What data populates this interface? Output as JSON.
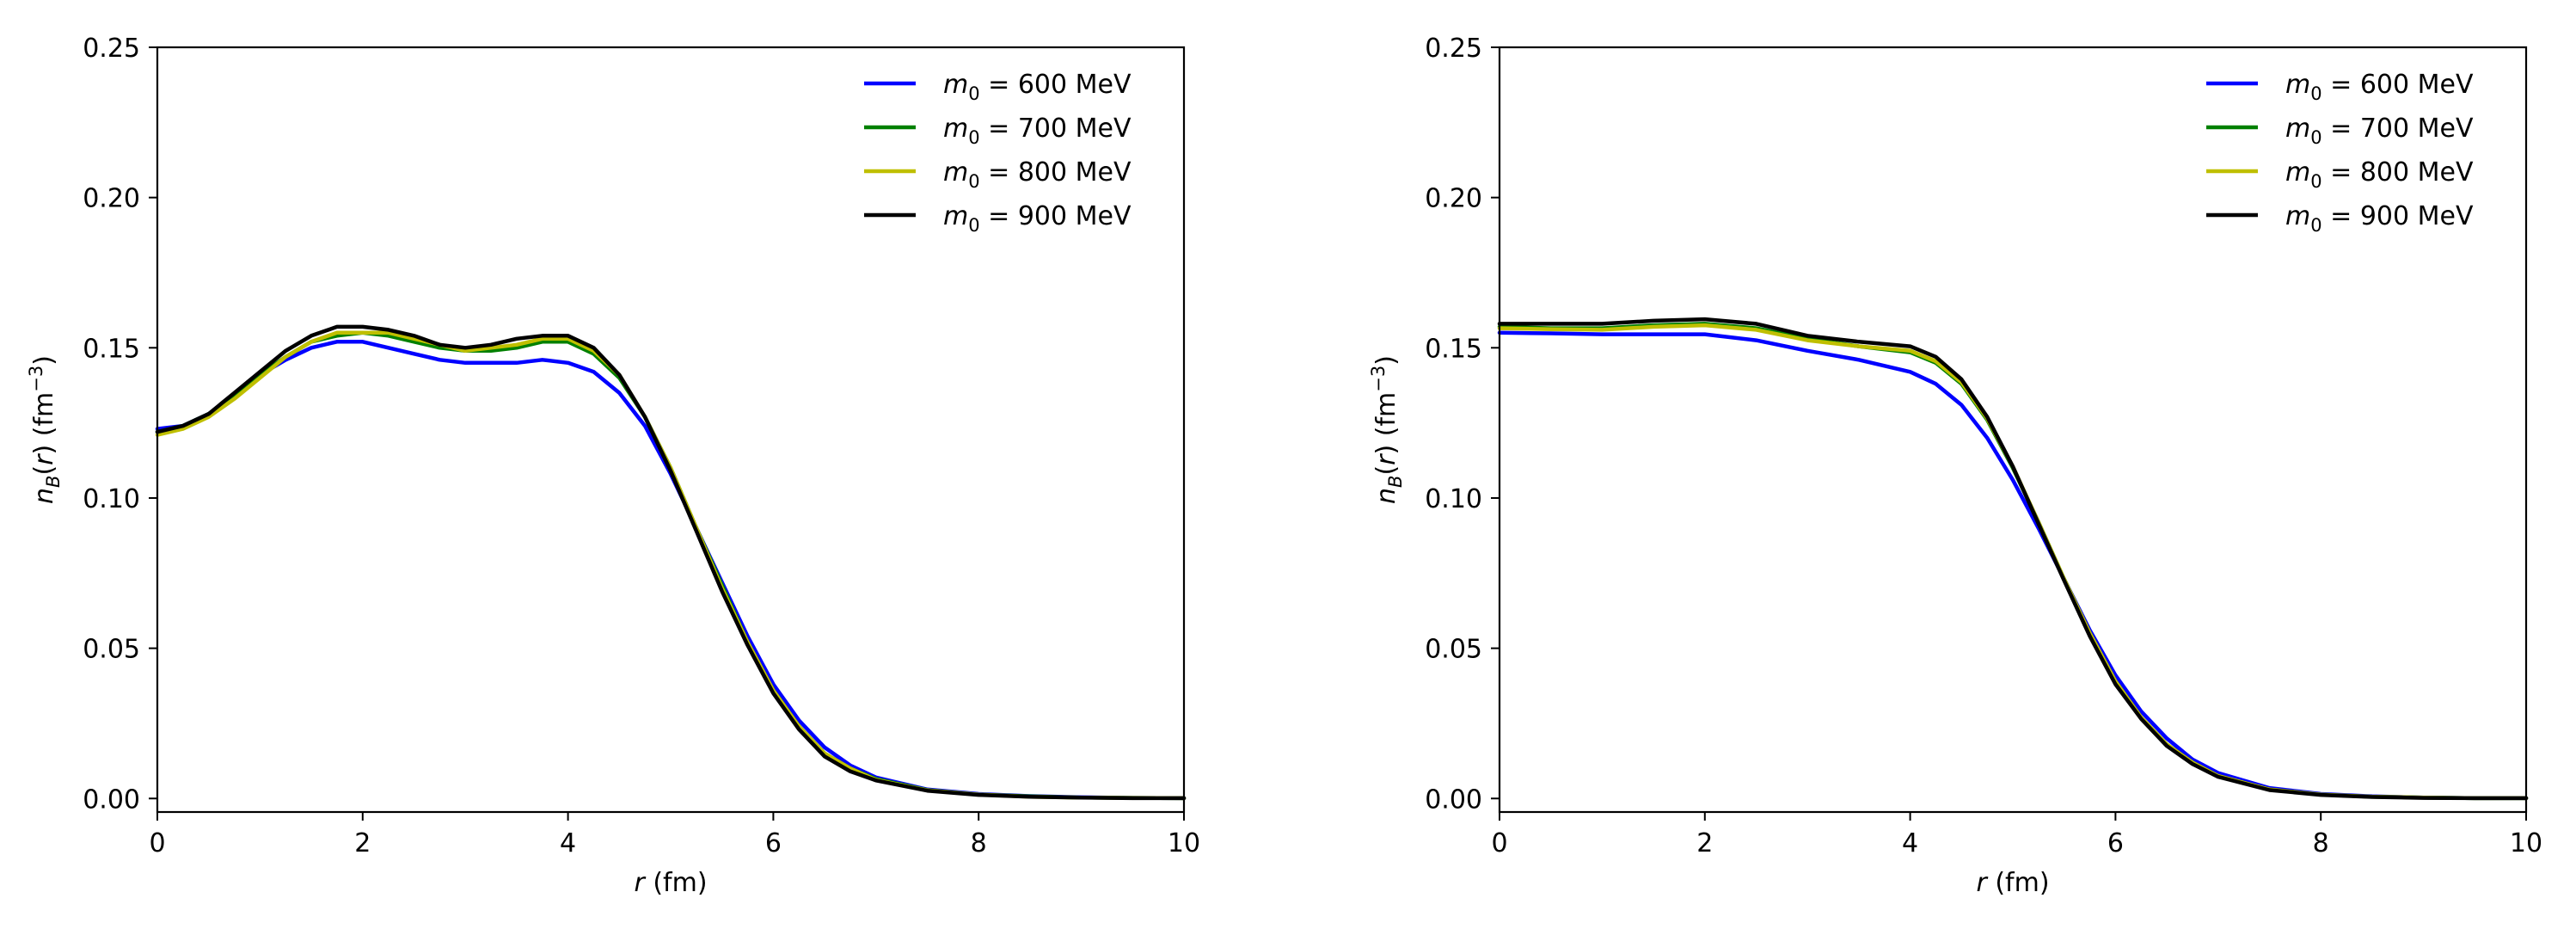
{
  "chart_data": [
    {
      "type": "line",
      "title": "",
      "xlabel": {
        "var": "r",
        "unit": "(fm)"
      },
      "ylabel": {
        "var": "n",
        "sub": "B",
        "arg": "(r)",
        "unit": "(fm",
        "sup": "−3",
        "close": ")"
      },
      "xlim": [
        0,
        10
      ],
      "ylim": [
        -0.0045,
        0.25
      ],
      "xticks": [
        0,
        2,
        4,
        6,
        8,
        10
      ],
      "xtick_labels": [
        "0",
        "2",
        "4",
        "6",
        "8",
        "10"
      ],
      "yticks": [
        0.0,
        0.05,
        0.1,
        0.15,
        0.2,
        0.25
      ],
      "ytick_labels": [
        "0.00",
        "0.05",
        "0.10",
        "0.15",
        "0.20",
        "0.25"
      ],
      "legend_position": "top-right",
      "x": [
        0,
        0.25,
        0.5,
        0.75,
        1,
        1.25,
        1.5,
        1.75,
        2,
        2.25,
        2.5,
        2.75,
        3,
        3.25,
        3.5,
        3.75,
        4,
        4.25,
        4.5,
        4.75,
        5,
        5.25,
        5.5,
        5.75,
        6,
        6.25,
        6.5,
        6.75,
        7,
        7.5,
        8,
        8.5,
        9,
        9.5,
        10
      ],
      "series": [
        {
          "name": "m0 = 600 MeV",
          "var": "m",
          "sub": "0",
          "rest": " = 600 MeV",
          "color": "#0000ff",
          "values": [
            0.123,
            0.124,
            0.128,
            0.134,
            0.141,
            0.146,
            0.15,
            0.152,
            0.152,
            0.15,
            0.148,
            0.146,
            0.145,
            0.145,
            0.145,
            0.146,
            0.145,
            0.142,
            0.135,
            0.124,
            0.108,
            0.09,
            0.072,
            0.054,
            0.038,
            0.026,
            0.017,
            0.011,
            0.007,
            0.003,
            0.0015,
            0.0008,
            0.0004,
            0.0002,
            0.0001
          ]
        },
        {
          "name": "m0 = 700 MeV",
          "var": "m",
          "sub": "0",
          "rest": " = 700 MeV",
          "color": "#008000",
          "values": [
            0.122,
            0.124,
            0.128,
            0.134,
            0.141,
            0.147,
            0.152,
            0.154,
            0.155,
            0.154,
            0.152,
            0.15,
            0.149,
            0.149,
            0.15,
            0.152,
            0.152,
            0.148,
            0.14,
            0.127,
            0.11,
            0.09,
            0.071,
            0.052,
            0.036,
            0.024,
            0.015,
            0.01,
            0.0065,
            0.0028,
            0.0013,
            0.0007,
            0.0003,
            0.0002,
            0.0001
          ]
        },
        {
          "name": "m0 = 800 MeV",
          "var": "m",
          "sub": "0",
          "rest": " = 800 MeV",
          "color": "#bfbf00",
          "values": [
            0.121,
            0.123,
            0.127,
            0.133,
            0.14,
            0.147,
            0.152,
            0.155,
            0.155,
            0.155,
            0.153,
            0.151,
            0.149,
            0.15,
            0.151,
            0.153,
            0.153,
            0.149,
            0.141,
            0.127,
            0.11,
            0.09,
            0.07,
            0.052,
            0.036,
            0.024,
            0.015,
            0.01,
            0.0062,
            0.0027,
            0.0013,
            0.0006,
            0.0003,
            0.0002,
            0.0001
          ]
        },
        {
          "name": "m0 = 900 MeV",
          "var": "m",
          "sub": "0",
          "rest": " = 900 MeV",
          "color": "#000000",
          "values": [
            0.122,
            0.124,
            0.128,
            0.135,
            0.142,
            0.149,
            0.154,
            0.157,
            0.157,
            0.156,
            0.154,
            0.151,
            0.15,
            0.151,
            0.153,
            0.154,
            0.154,
            0.15,
            0.141,
            0.127,
            0.109,
            0.089,
            0.069,
            0.051,
            0.035,
            0.023,
            0.014,
            0.009,
            0.006,
            0.0026,
            0.0012,
            0.0006,
            0.0003,
            0.0001,
            0.0001
          ]
        }
      ]
    },
    {
      "type": "line",
      "title": "",
      "xlabel": {
        "var": "r",
        "unit": "(fm)"
      },
      "ylabel": {
        "var": "n",
        "sub": "B",
        "arg": "(r)",
        "unit": "(fm",
        "sup": "−3",
        "close": ")"
      },
      "xlim": [
        0,
        10
      ],
      "ylim": [
        -0.0045,
        0.25
      ],
      "xticks": [
        0,
        2,
        4,
        6,
        8,
        10
      ],
      "xtick_labels": [
        "0",
        "2",
        "4",
        "6",
        "8",
        "10"
      ],
      "yticks": [
        0.0,
        0.05,
        0.1,
        0.15,
        0.2,
        0.25
      ],
      "ytick_labels": [
        "0.00",
        "0.05",
        "0.10",
        "0.15",
        "0.20",
        "0.25"
      ],
      "legend_position": "top-right",
      "x": [
        0,
        0.5,
        1,
        1.5,
        2,
        2.5,
        3,
        3.5,
        4,
        4.25,
        4.5,
        4.75,
        5,
        5.25,
        5.5,
        5.75,
        6,
        6.25,
        6.5,
        6.75,
        7,
        7.5,
        8,
        8.5,
        9,
        9.5,
        10
      ],
      "series": [
        {
          "name": "m0 = 600 MeV",
          "var": "m",
          "sub": "0",
          "rest": " = 600 MeV",
          "color": "#0000ff",
          "values": [
            0.155,
            0.1548,
            0.1545,
            0.1545,
            0.1545,
            0.1525,
            0.149,
            0.146,
            0.142,
            0.138,
            0.131,
            0.12,
            0.106,
            0.09,
            0.073,
            0.056,
            0.041,
            0.029,
            0.02,
            0.013,
            0.0085,
            0.0035,
            0.0015,
            0.0007,
            0.0003,
            0.0001,
            0.0001
          ]
        },
        {
          "name": "m0 = 700 MeV",
          "var": "m",
          "sub": "0",
          "rest": " = 700 MeV",
          "color": "#008000",
          "values": [
            0.157,
            0.1565,
            0.1565,
            0.1575,
            0.158,
            0.1565,
            0.153,
            0.1505,
            0.1485,
            0.145,
            0.138,
            0.126,
            0.11,
            0.092,
            0.073,
            0.055,
            0.039,
            0.027,
            0.018,
            0.012,
            0.0075,
            0.003,
            0.0013,
            0.0006,
            0.0003,
            0.0001,
            0.0001
          ]
        },
        {
          "name": "m0 = 800 MeV",
          "var": "m",
          "sub": "0",
          "rest": " = 800 MeV",
          "color": "#bfbf00",
          "values": [
            0.1565,
            0.1562,
            0.156,
            0.157,
            0.1575,
            0.156,
            0.1525,
            0.1505,
            0.149,
            0.1455,
            0.1385,
            0.1265,
            0.1105,
            0.092,
            0.073,
            0.055,
            0.039,
            0.027,
            0.018,
            0.012,
            0.0075,
            0.003,
            0.0013,
            0.0006,
            0.0003,
            0.0001,
            0.0001
          ]
        },
        {
          "name": "m0 = 900 MeV",
          "var": "m",
          "sub": "0",
          "rest": " = 900 MeV",
          "color": "#000000",
          "values": [
            0.158,
            0.158,
            0.158,
            0.159,
            0.1595,
            0.158,
            0.154,
            0.152,
            0.1505,
            0.147,
            0.1395,
            0.127,
            0.1105,
            0.0915,
            0.0725,
            0.054,
            0.038,
            0.0265,
            0.0175,
            0.0115,
            0.0072,
            0.0028,
            0.0012,
            0.0005,
            0.0002,
            0.0001,
            0.0001
          ]
        }
      ]
    }
  ]
}
